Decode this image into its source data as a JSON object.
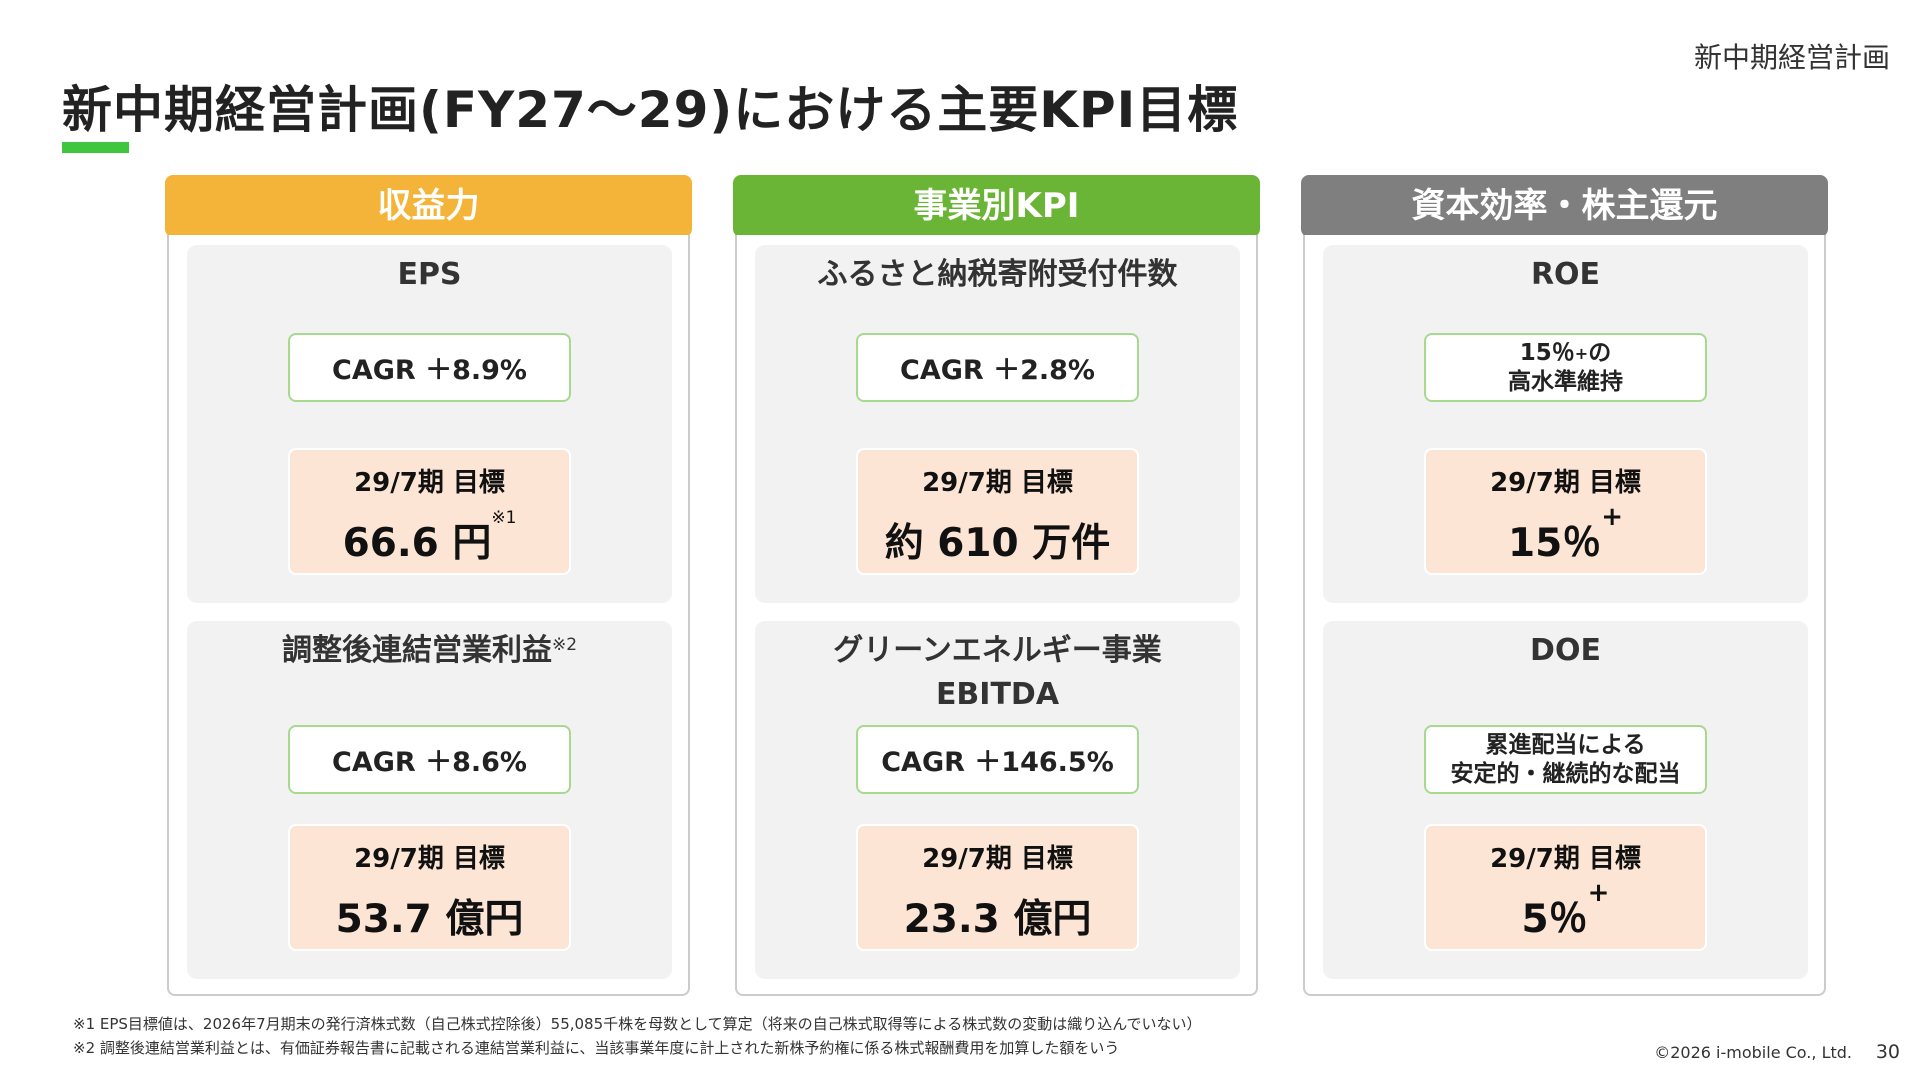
{
  "header": {
    "label": "新中期経営計画",
    "title": "新中期経営計画(FY27～29)における主要KPI目標"
  },
  "colors": {
    "orange": "#f4b43a",
    "green": "#6ab536",
    "gray": "#7f7f7f",
    "accent": "#3ec63e",
    "kpi_border": "#a6da8e",
    "target_bg": "#fce5d4"
  },
  "columns": [
    {
      "title": "収益力",
      "panels": [
        {
          "title": "EPS",
          "kpi": "CAGR ＋8.9%",
          "target_label": "29/7期 目標",
          "target_value": "66.6 円",
          "target_note": "※1"
        },
        {
          "title": "調整後連結営業利益",
          "title_note": "※2",
          "kpi": "CAGR ＋8.6%",
          "target_label": "29/7期 目標",
          "target_value": "53.7 億円"
        }
      ]
    },
    {
      "title": "事業別KPI",
      "panels": [
        {
          "title": "ふるさと納税寄附受付件数",
          "kpi": "CAGR ＋2.8%",
          "target_label": "29/7期 目標",
          "target_value": "約 610 万件"
        },
        {
          "title_line1": "グリーンエネルギー事業",
          "title_line2": "EBITDA",
          "kpi": "CAGR ＋146.5%",
          "target_label": "29/7期 目標",
          "target_value": "23.3 億円"
        }
      ]
    },
    {
      "title": "資本効率・株主還元",
      "panels": [
        {
          "title": "ROE",
          "kpi_line1": "15％",
          "kpi_line1_sup": "+",
          "kpi_line1_tail": "の",
          "kpi_line2": "高水準維持",
          "target_label": "29/7期 目標",
          "target_value": "15％",
          "target_sup": "+"
        },
        {
          "title": "DOE",
          "kpi_line1": "累進配当による",
          "kpi_line2": "安定的・継続的な配当",
          "target_label": "29/7期 目標",
          "target_value": "5％",
          "target_sup": "+"
        }
      ]
    }
  ],
  "footnotes": [
    "※1 EPS目標値は、2026年7月期末の発行済株式数（自己株式控除後）55,085千株を母数として算定（将来の自己株式取得等による株式数の変動は織り込んでいない）",
    "※2 調整後連結営業利益とは、有価証券報告書に記載される連結営業利益に、当該事業年度に計上された新株予約権に係る株式報酬費用を加算した額をいう"
  ],
  "footer": {
    "copyright": "©2026 i-mobile Co., Ltd.",
    "page_number": "30"
  }
}
